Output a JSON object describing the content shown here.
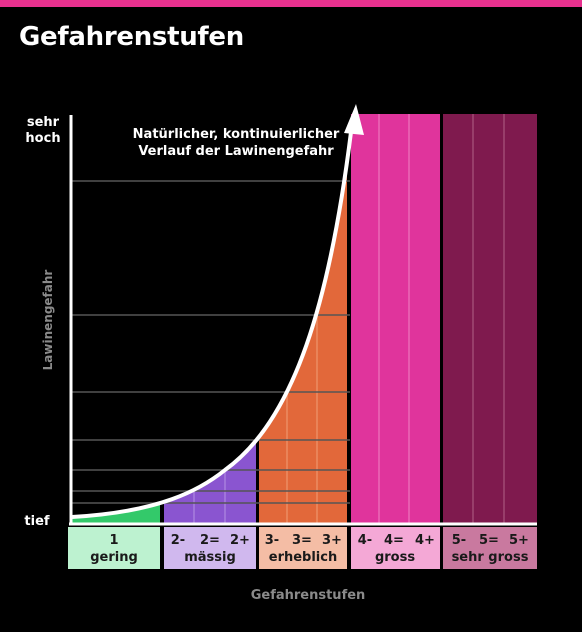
{
  "header": {
    "title": "Gefahrenstufen"
  },
  "colors": {
    "topbar": "#e8318f",
    "level1": "#33c96a",
    "level2": "#8a55d0",
    "level3": "#e2683a",
    "level4": "#e0349c",
    "level5": "#7f1a4e",
    "label1": "#bdf2d0",
    "label2": "#d0b8ee",
    "label3": "#f4bda5",
    "label4": "#f4a8d6",
    "label5": "#c9799f"
  },
  "chart_data": {
    "type": "area",
    "ylabel": "Lawinengefahr",
    "xlabel": "Gefahrenstufen",
    "y_top_label_line1": "sehr",
    "y_top_label_line2": "hoch",
    "y_bottom_label": "tief",
    "annotation_line1": "Natürlicher, kontinuierlicher",
    "annotation_line2": "Verlauf der Lawinengefahr",
    "levels": [
      {
        "number": "1",
        "name": "gering",
        "subs": []
      },
      {
        "number": "",
        "name": "mässig",
        "subs": [
          "2-",
          "2=",
          "2+"
        ]
      },
      {
        "number": "",
        "name": "erheblich",
        "subs": [
          "3-",
          "3=",
          "3+"
        ]
      },
      {
        "number": "",
        "name": "gross",
        "subs": [
          "4-",
          "4=",
          "4+"
        ]
      },
      {
        "number": "",
        "name": "sehr gross",
        "subs": [
          "5-",
          "5=",
          "5+"
        ]
      }
    ],
    "grid": true
  }
}
